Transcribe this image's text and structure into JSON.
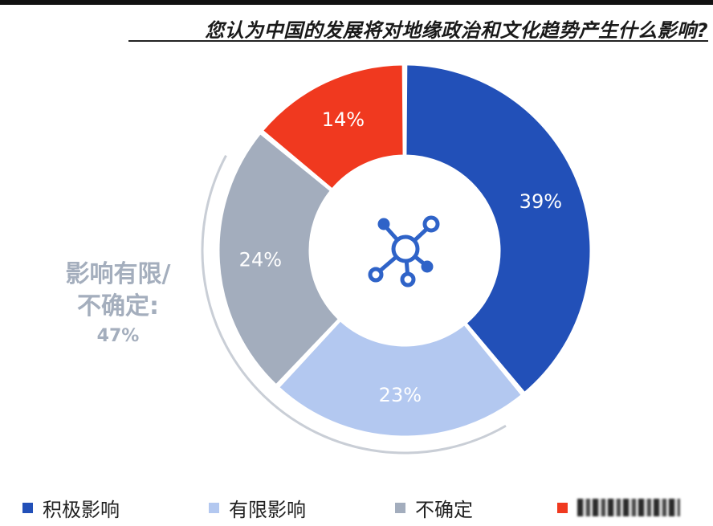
{
  "title": "您认为中国的发展将对地缘政治和文化趋势产生什么影响?",
  "center_icon": "network-hub-icon",
  "callout": {
    "line1": "影响有限/",
    "line2": "不确定:",
    "value": "47%"
  },
  "chart_data": {
    "type": "pie",
    "donut": true,
    "title": "您认为中国的发展将对地缘政治和文化趋势产生什么影响?",
    "legend_position": "bottom",
    "slices": [
      {
        "name": "积极影响",
        "value": 39,
        "label": "39%",
        "color": "#2250b8"
      },
      {
        "name": "有限影响",
        "value": 23,
        "label": "23%",
        "color": "#b3c8f0"
      },
      {
        "name": "不确定",
        "value": 24,
        "label": "24%",
        "color": "#a3adbd"
      },
      {
        "name": "",
        "value": 14,
        "label": "14%",
        "color": "#f0391f"
      }
    ],
    "group_annotation": {
      "label": "影响有限/不确定:",
      "value": 47
    }
  }
}
